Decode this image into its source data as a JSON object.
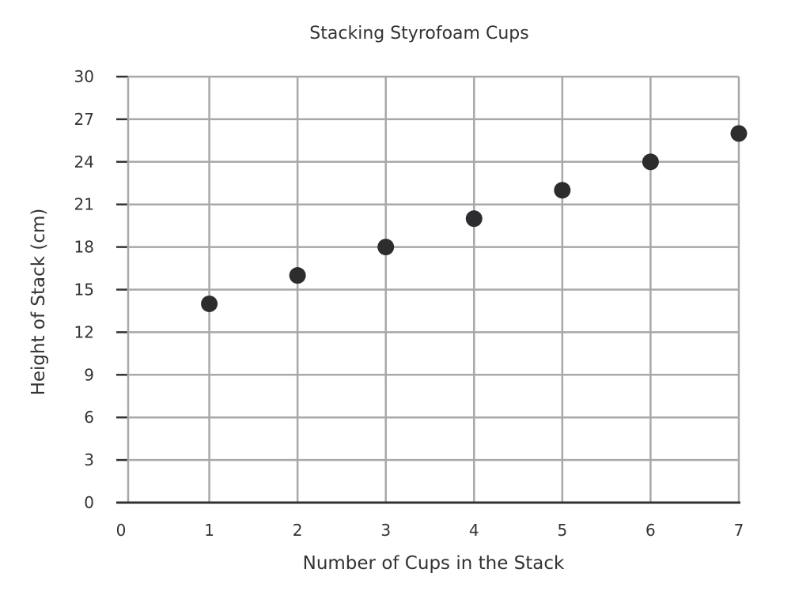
{
  "chart_data": {
    "type": "scatter",
    "title": "Stacking Styrofoam Cups",
    "xlabel": "Number of Cups in the Stack",
    "ylabel": "Height of Stack (cm)",
    "xlim": [
      0,
      7
    ],
    "ylim": [
      0,
      30
    ],
    "x_ticks": [
      0,
      1,
      2,
      3,
      4,
      5,
      6,
      7
    ],
    "y_ticks": [
      0,
      3,
      6,
      9,
      12,
      15,
      18,
      21,
      24,
      27,
      30
    ],
    "grid": true,
    "point_color": "#2d2d2f",
    "grid_color": "#a8a8a8",
    "axis_color": "#333333",
    "series": [
      {
        "x": [
          1,
          2,
          3,
          4,
          5,
          6,
          7
        ],
        "y": [
          14,
          16,
          18,
          20,
          22,
          24,
          26
        ]
      }
    ]
  }
}
